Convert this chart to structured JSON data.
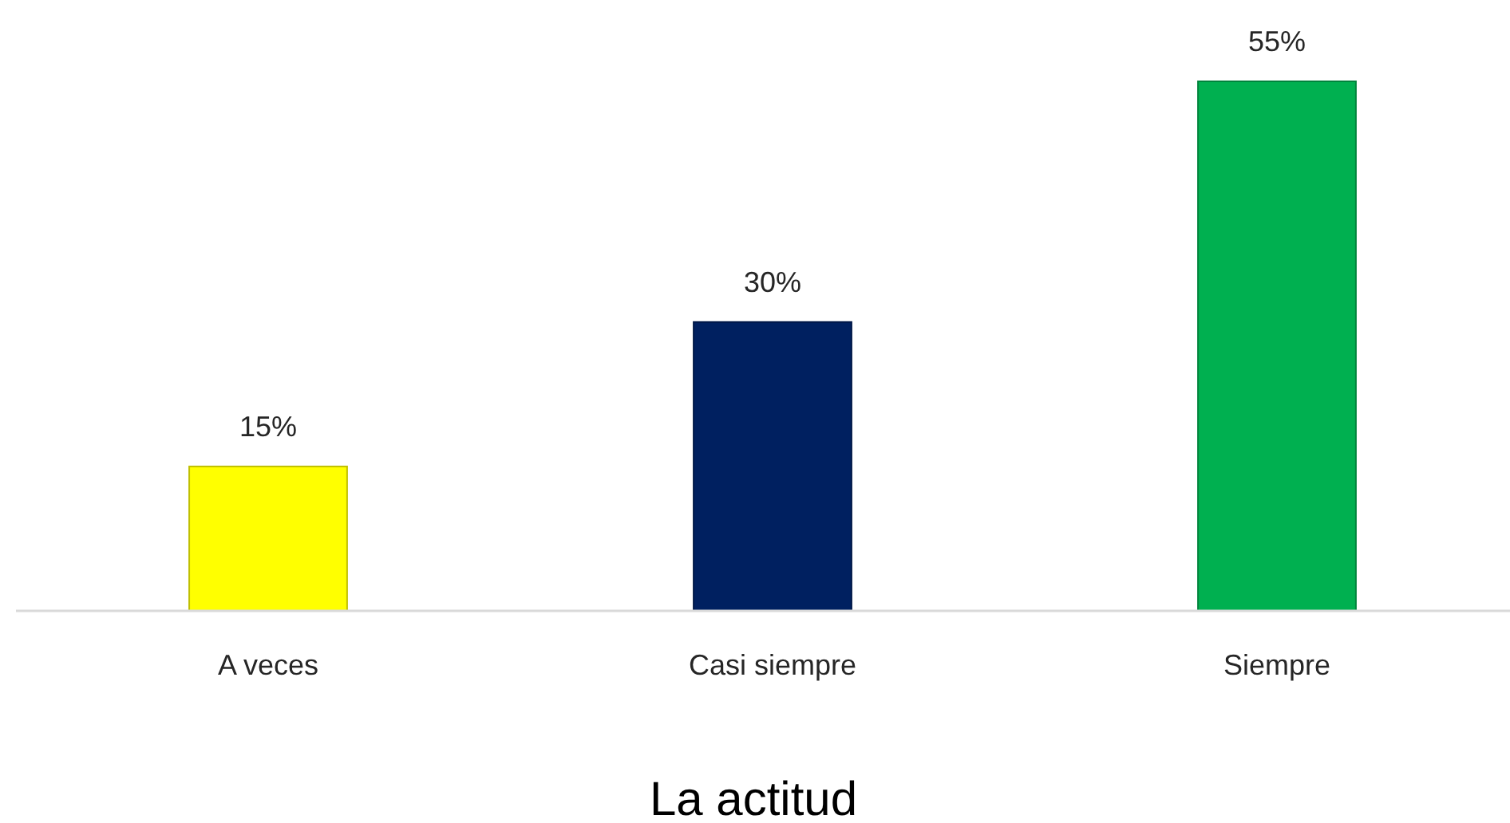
{
  "chart_data": {
    "type": "bar",
    "xlabel": "La actitud",
    "categories": [
      "A veces",
      "Casi siempre",
      "Siempre"
    ],
    "values": [
      15,
      30,
      55
    ],
    "colors": [
      "#ffff00",
      "#002060",
      "#00b050"
    ],
    "value_labels": [
      "15%",
      "30%",
      "55%"
    ],
    "tick_labels": "x"
  }
}
